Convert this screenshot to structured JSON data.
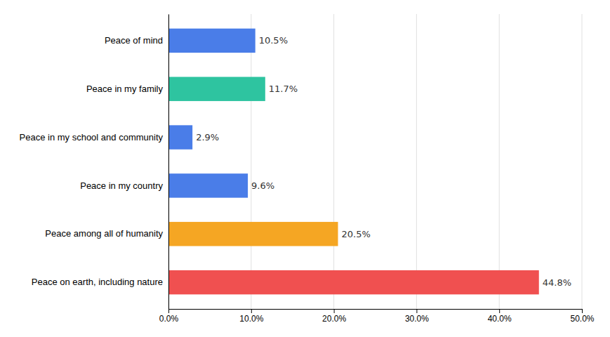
{
  "chart_data": {
    "type": "bar",
    "orientation": "horizontal",
    "categories": [
      "Peace on earth, including nature",
      "Peace among all of humanity",
      "Peace in my country",
      "Peace in my school and community",
      "Peace in my family",
      "Peace of mind"
    ],
    "values": [
      44.8,
      20.5,
      9.6,
      2.9,
      11.7,
      10.5
    ],
    "value_labels": [
      "44.8%",
      "20.5%",
      "9.6%",
      "2.9%",
      "11.7%",
      "10.5%"
    ],
    "colors": [
      "#f05050",
      "#f5a623",
      "#4a7de8",
      "#4a7de8",
      "#2ec4a0",
      "#4a7de8"
    ],
    "xlim": [
      0,
      50
    ],
    "xticks": [
      {
        "value": 0,
        "label": "0.0%"
      },
      {
        "value": 10,
        "label": "10.0%"
      },
      {
        "value": 20,
        "label": "20.0%"
      },
      {
        "value": 30,
        "label": "30.0%"
      },
      {
        "value": 40,
        "label": "40.0%"
      },
      {
        "value": 50,
        "label": "50.0%"
      }
    ],
    "grid": true,
    "data_labels": true
  }
}
